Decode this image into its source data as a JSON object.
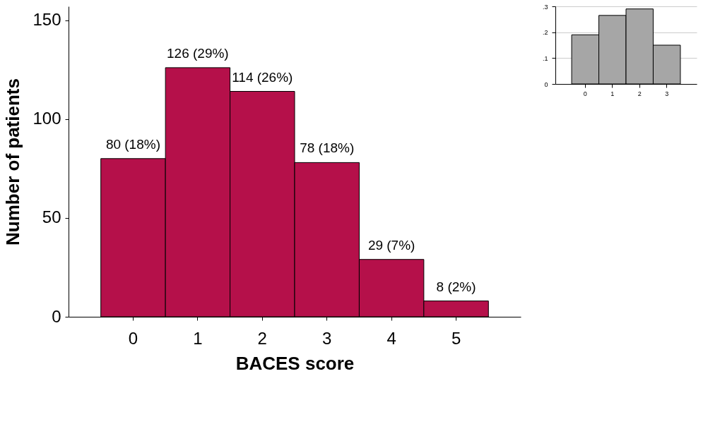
{
  "chart_data": [
    {
      "type": "bar",
      "xlabel": "BACES score",
      "ylabel": "Number of patients",
      "categories": [
        "0",
        "1",
        "2",
        "3",
        "4",
        "5"
      ],
      "values": [
        80,
        126,
        114,
        78,
        29,
        8
      ],
      "color": "#b5104a",
      "value_labels": [
        "80 (18%)",
        "126 (29%)",
        "114 (26%)",
        "78 (18%)",
        "29 (7%)",
        "8 (2%)"
      ],
      "ylim": [
        0,
        157
      ],
      "yticks": [
        0,
        50,
        100,
        150
      ],
      "grid": false
    },
    {
      "type": "bar",
      "categories": [
        "0",
        "1",
        "2",
        "3"
      ],
      "values": [
        0.19,
        0.265,
        0.29,
        0.15
      ],
      "color": "#a6a6a6",
      "ylim": [
        0,
        0.3
      ],
      "yticks": [
        {
          "value": 0,
          "label": "0"
        },
        {
          "value": 0.1,
          "label": ".1"
        },
        {
          "value": 0.2,
          "label": ".2"
        },
        {
          "value": 0.3,
          "label": ".3"
        }
      ],
      "grid": "y"
    }
  ]
}
